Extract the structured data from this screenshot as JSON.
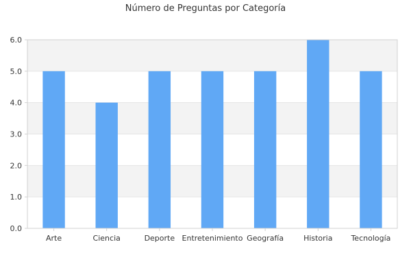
{
  "chart_data": {
    "type": "bar",
    "title": "Número de Preguntas por Categoría",
    "xlabel": "",
    "ylabel": "",
    "categories": [
      "Arte",
      "Ciencia",
      "Deporte",
      "Entretenimiento",
      "Geografía",
      "Historia",
      "Tecnología"
    ],
    "values": [
      5,
      4,
      5,
      5,
      5,
      6,
      5
    ],
    "ylim": [
      0,
      6
    ],
    "yticks": [
      "0.0",
      "1.0",
      "2.0",
      "3.0",
      "4.0",
      "5.0",
      "6.0"
    ],
    "grid": true,
    "legend": "none",
    "colors": {
      "bar": "#60a8f5",
      "band": "#f3f3f3",
      "axis": "#d0d0d0",
      "text": "#333333"
    }
  }
}
